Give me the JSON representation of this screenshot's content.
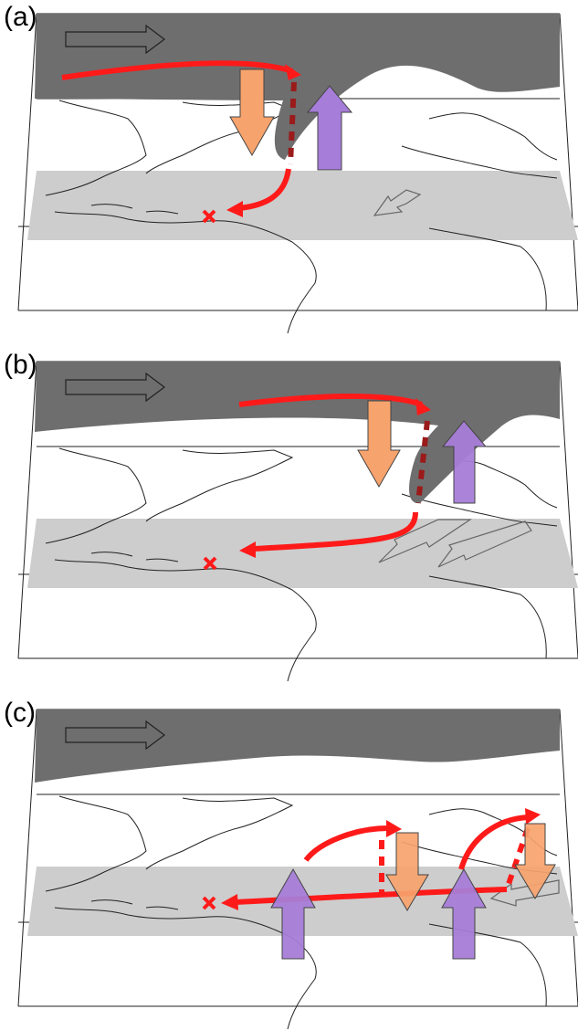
{
  "panels": [
    {
      "id": "a",
      "label": "(a)"
    },
    {
      "id": "b",
      "label": "(b)"
    },
    {
      "id": "c",
      "label": "(c)"
    }
  ],
  "colors": {
    "upper_layer": "#6e6e6e",
    "tropical_band": "#cdcdcd",
    "trajectory": "#ff1a1a",
    "trajectory_dashed": "#9b1a1a",
    "descent_arrow": "#f7a36d",
    "ascent_arrow": "#a67dd8",
    "coastline": "#222222"
  },
  "icons": {
    "upper_wind": "outline-arrow-right-icon",
    "trade_wind": "outline-arrow-southwest-icon",
    "descent": "orange-down-arrow-icon",
    "ascent": "purple-up-arrow-icon",
    "origin": "red-x-marker-icon"
  }
}
